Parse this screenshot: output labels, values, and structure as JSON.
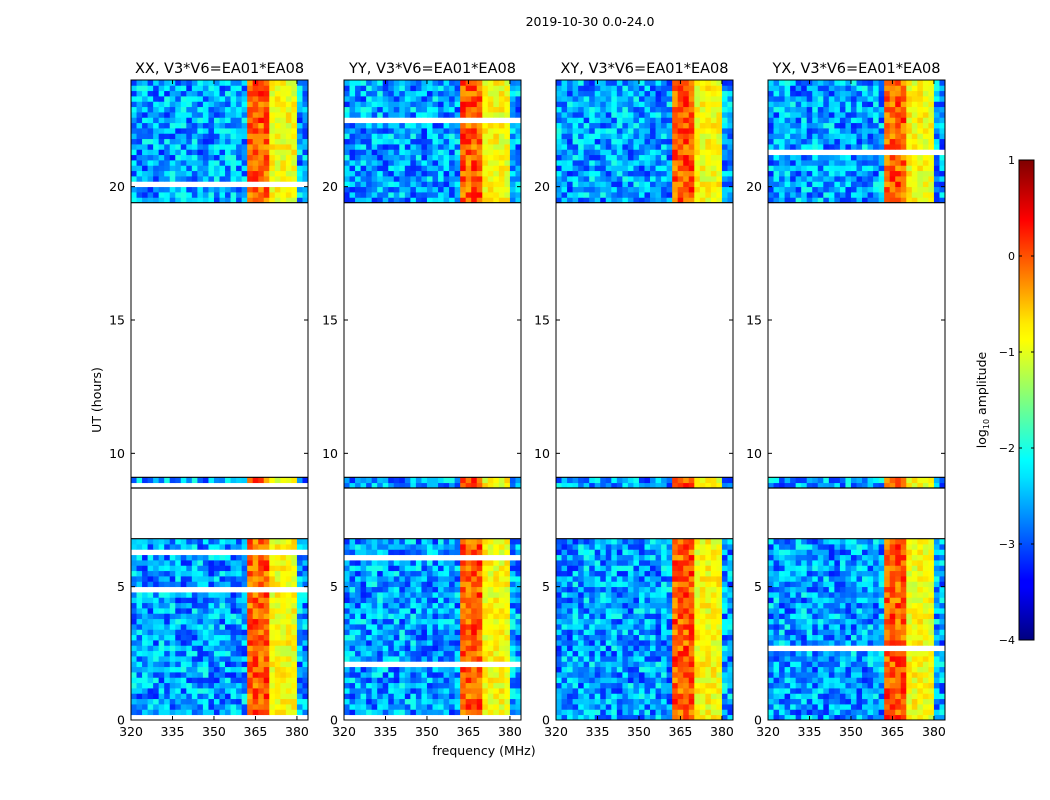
{
  "figure": {
    "suptitle": "2019-10-30 0.0-24.0",
    "xlabel": "frequency (MHz)",
    "ylabel": "UT (hours)"
  },
  "colorbar": {
    "label_prefix": "log",
    "label_sub": "10",
    "label_suffix": " amplitude",
    "ticks": [
      "1",
      "0",
      "−1",
      "−2",
      "−3",
      "−4"
    ],
    "tick_values": [
      1,
      0,
      -1,
      -2,
      -3,
      -4
    ],
    "range": [
      -4,
      1
    ],
    "colormap": "jet"
  },
  "chart_data": {
    "type": "heatmap",
    "panels": [
      {
        "title": "XX, V3*V6=EA01*EA08",
        "polarization": "XX"
      },
      {
        "title": "YY, V3*V6=EA01*EA08",
        "polarization": "YY"
      },
      {
        "title": "XY, V3*V6=EA01*EA08",
        "polarization": "XY"
      },
      {
        "title": "YX, V3*V6=EA01*EA08",
        "polarization": "YX"
      }
    ],
    "xlim": [
      320,
      384
    ],
    "ylim": [
      0,
      24
    ],
    "x_ticks": [
      320,
      335,
      350,
      365,
      380
    ],
    "x_tick_labels": [
      "320",
      "335",
      "350",
      "365",
      "380"
    ],
    "y_ticks": [
      0,
      5,
      10,
      15,
      20
    ],
    "y_tick_labels": [
      "0",
      "5",
      "10",
      "15",
      "20"
    ],
    "data_time_ranges_hours": [
      [
        0,
        6.8
      ],
      [
        8.7,
        9.1
      ],
      [
        19.4,
        24.0
      ]
    ],
    "flagged_time_ranges_hours": [
      [
        6.8,
        8.7
      ],
      [
        9.1,
        19.4
      ]
    ],
    "bright_frequency_band_mhz": [
      362.5,
      369
    ],
    "secondary_bright_channels_mhz": [
      372,
      375,
      378
    ],
    "background_log_amplitude": -2.6,
    "band_log_amplitude": 0
  }
}
